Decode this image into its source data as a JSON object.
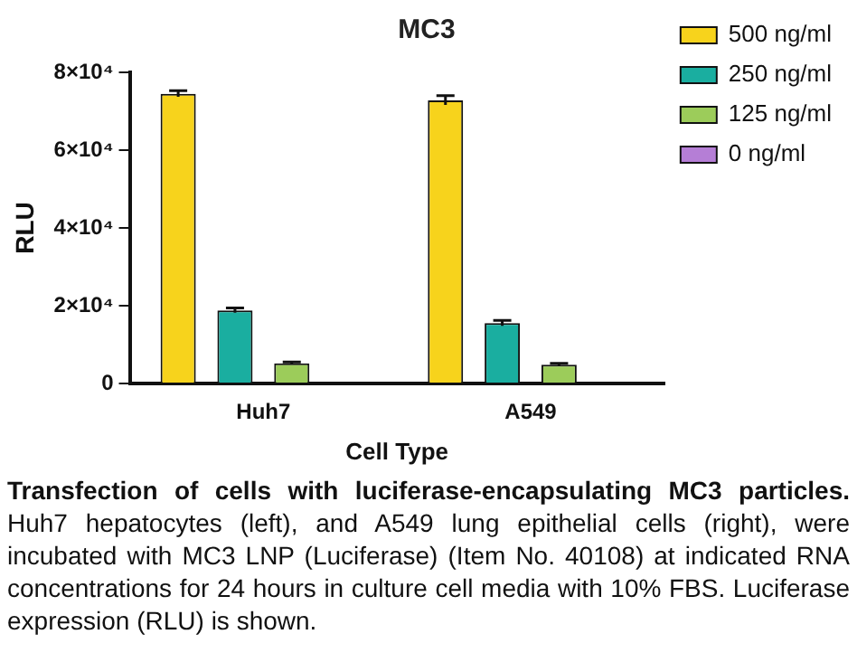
{
  "chart_data": {
    "type": "bar",
    "title": "MC3",
    "xlabel": "Cell Type",
    "ylabel": "RLU",
    "categories": [
      "Huh7",
      "A549"
    ],
    "series": [
      {
        "name": "500 ng/ml",
        "color": "#f7d31c",
        "values": [
          74500,
          72800
        ],
        "errors": [
          800,
          1200
        ]
      },
      {
        "name": "250 ng/ml",
        "color": "#1aaea0",
        "values": [
          18800,
          15500
        ],
        "errors": [
          600,
          700
        ]
      },
      {
        "name": "125 ng/ml",
        "color": "#9ccc5a",
        "values": [
          5200,
          4800
        ],
        "errors": [
          300,
          400
        ]
      },
      {
        "name": "0 ng/ml",
        "color": "#b57ed6",
        "values": [
          0,
          0
        ]
      }
    ],
    "ylim": [
      0,
      80000
    ],
    "yticks": [
      {
        "value": 0,
        "label": "0"
      },
      {
        "value": 20000,
        "label": "2×10⁴"
      },
      {
        "value": 40000,
        "label": "4×10⁴"
      },
      {
        "value": 60000,
        "label": "6×10⁴"
      },
      {
        "value": 80000,
        "label": "8×10⁴"
      }
    ],
    "grid": false,
    "legend": "right",
    "annotations": [
      "Transfection of cells with luciferase-encapsulating MC3 particles.",
      "Huh7 hepatocytes (left), and A549 lung epithelial cells (right), were incubated with MC3 LNP (Luciferase) (Item No. 40108) at indicated RNA concentrations for 24 hours in culture cell media with 10% FBS. Luciferase expression (RLU) is shown."
    ]
  }
}
